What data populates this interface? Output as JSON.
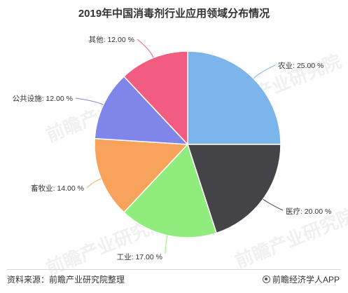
{
  "title": "2019年中国消毒剂行业应用领域分布情况",
  "source": "资料来源：前瞻产业研究院整理",
  "brand": "前瞻经济学人APP",
  "watermark": "前瞻产业研究院",
  "chart_data": {
    "type": "pie",
    "title": "2019年中国消毒剂行业应用领域分布情况",
    "unit": "%",
    "slices": [
      {
        "name": "农业",
        "value": 25.0,
        "label": "农业: 25.00 %",
        "color": "#7cb5ec"
      },
      {
        "name": "医疗",
        "value": 20.0,
        "label": "医疗: 20.00 %",
        "color": "#434348"
      },
      {
        "name": "工业",
        "value": 17.0,
        "label": "工业: 17.00 %",
        "color": "#90ed7d"
      },
      {
        "name": "畜牧业",
        "value": 14.0,
        "label": "畜牧业: 14.00 %",
        "color": "#f7a35c"
      },
      {
        "name": "公共设施",
        "value": 12.0,
        "label": "公共设施: 12.00 %",
        "color": "#8085e9"
      },
      {
        "name": "其他",
        "value": 12.0,
        "label": "其他: 12.00 %",
        "color": "#f15c80"
      }
    ]
  }
}
